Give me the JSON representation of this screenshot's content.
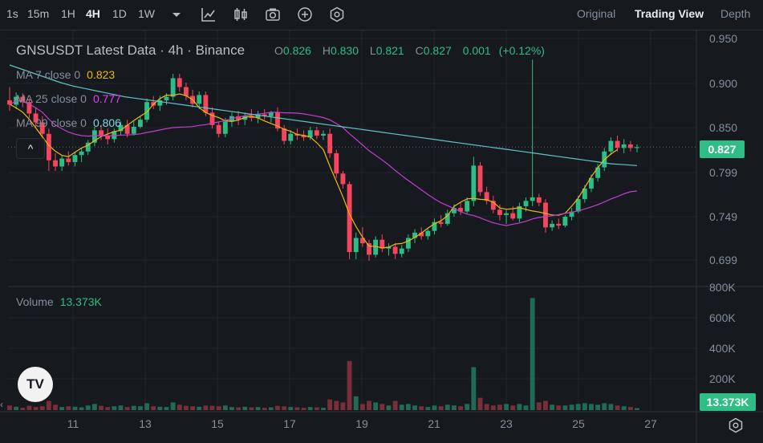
{
  "toolbar": {
    "timeframes": [
      "1s",
      "15m",
      "1H",
      "4H",
      "1D",
      "1W"
    ],
    "active_timeframe": "4H",
    "icons": [
      "dropdown-caret-icon",
      "indicator-icon",
      "candle-style-icon",
      "screenshot-icon",
      "add-icon",
      "settings-hex-icon"
    ],
    "views": [
      "Original",
      "Trading View",
      "Depth"
    ],
    "active_view": "Trading View"
  },
  "legend": {
    "symbol": "GNSUSDT Latest Data · 4h · Binance",
    "ohlc": {
      "o_label": "O",
      "o": "0.826",
      "h_label": "H",
      "h": "0.830",
      "l_label": "L",
      "l": "0.821",
      "c_label": "C",
      "c": "0.827",
      "change": "0.001",
      "change_pct": "(+0.12%)"
    },
    "ma7": {
      "label": "MA 7 close 0",
      "value": "0.823",
      "color": "#f0b90b"
    },
    "ma25": {
      "label": "MA 25 close 0",
      "value": "0.777",
      "color": "#e040fb"
    },
    "ma99": {
      "label": "MA 99 close 0",
      "value": "0.806",
      "color": "#7fd6e8"
    },
    "collapse": "^"
  },
  "volume_legend": {
    "label": "Volume",
    "value": "13.373K"
  },
  "logo_text": "TV",
  "price_axis": [
    "0.950",
    "0.900",
    "0.850",
    "0.799",
    "0.749",
    "0.699"
  ],
  "volume_axis": [
    "800K",
    "600K",
    "400K",
    "200K"
  ],
  "current_price_tag": "0.827",
  "current_volume_tag": "13.373K",
  "date_axis": [
    "11",
    "13",
    "15",
    "17",
    "19",
    "21",
    "23",
    "25",
    "27"
  ],
  "colors": {
    "up": "#2ebd85",
    "down": "#f6465d",
    "up_vol": "#1f6b55",
    "down_vol": "#7a2e3a",
    "ma7": "#f0b90b",
    "ma25": "#c13fd1",
    "ma99": "#5fc4c4"
  },
  "chart_data": {
    "type": "candlestick",
    "interval": "4h",
    "ylim": [
      0.68,
      0.955
    ],
    "volume_ylim": [
      0,
      850000
    ],
    "x_ticks": [
      "11",
      "13",
      "15",
      "17",
      "19",
      "21",
      "23",
      "25",
      "27"
    ],
    "candles": [
      [
        0.88,
        0.895,
        0.868,
        0.875,
        30000
      ],
      [
        0.875,
        0.889,
        0.87,
        0.884,
        22000
      ],
      [
        0.884,
        0.888,
        0.872,
        0.878,
        15000
      ],
      [
        0.878,
        0.882,
        0.86,
        0.865,
        28000
      ],
      [
        0.865,
        0.872,
        0.85,
        0.855,
        20000
      ],
      [
        0.855,
        0.862,
        0.838,
        0.842,
        25000
      ],
      [
        0.842,
        0.848,
        0.8,
        0.812,
        60000
      ],
      [
        0.812,
        0.82,
        0.8,
        0.805,
        35000
      ],
      [
        0.805,
        0.818,
        0.8,
        0.814,
        20000
      ],
      [
        0.814,
        0.822,
        0.806,
        0.81,
        25000
      ],
      [
        0.81,
        0.822,
        0.805,
        0.818,
        22000
      ],
      [
        0.818,
        0.826,
        0.81,
        0.822,
        18000
      ],
      [
        0.822,
        0.835,
        0.818,
        0.832,
        30000
      ],
      [
        0.832,
        0.85,
        0.828,
        0.846,
        40000
      ],
      [
        0.846,
        0.852,
        0.835,
        0.84,
        28000
      ],
      [
        0.84,
        0.848,
        0.83,
        0.836,
        20000
      ],
      [
        0.836,
        0.848,
        0.832,
        0.845,
        25000
      ],
      [
        0.845,
        0.856,
        0.84,
        0.852,
        30000
      ],
      [
        0.852,
        0.858,
        0.838,
        0.842,
        20000
      ],
      [
        0.842,
        0.856,
        0.84,
        0.85,
        28000
      ],
      [
        0.85,
        0.862,
        0.848,
        0.858,
        25000
      ],
      [
        0.858,
        0.882,
        0.855,
        0.878,
        45000
      ],
      [
        0.878,
        0.885,
        0.87,
        0.874,
        25000
      ],
      [
        0.874,
        0.885,
        0.868,
        0.88,
        22000
      ],
      [
        0.88,
        0.888,
        0.875,
        0.884,
        20000
      ],
      [
        0.884,
        0.91,
        0.88,
        0.905,
        50000
      ],
      [
        0.905,
        0.91,
        0.89,
        0.895,
        35000
      ],
      [
        0.895,
        0.9,
        0.88,
        0.885,
        28000
      ],
      [
        0.885,
        0.892,
        0.872,
        0.876,
        25000
      ],
      [
        0.876,
        0.89,
        0.87,
        0.886,
        22000
      ],
      [
        0.886,
        0.89,
        0.862,
        0.866,
        30000
      ],
      [
        0.866,
        0.872,
        0.848,
        0.852,
        28000
      ],
      [
        0.852,
        0.856,
        0.838,
        0.842,
        25000
      ],
      [
        0.842,
        0.86,
        0.838,
        0.856,
        30000
      ],
      [
        0.856,
        0.866,
        0.85,
        0.862,
        20000
      ],
      [
        0.862,
        0.868,
        0.852,
        0.858,
        18000
      ],
      [
        0.858,
        0.866,
        0.852,
        0.862,
        22000
      ],
      [
        0.862,
        0.87,
        0.856,
        0.86,
        18000
      ],
      [
        0.86,
        0.868,
        0.854,
        0.864,
        20000
      ],
      [
        0.864,
        0.87,
        0.858,
        0.862,
        15000
      ],
      [
        0.862,
        0.868,
        0.855,
        0.866,
        18000
      ],
      [
        0.866,
        0.872,
        0.845,
        0.848,
        28000
      ],
      [
        0.848,
        0.852,
        0.83,
        0.834,
        25000
      ],
      [
        0.834,
        0.846,
        0.83,
        0.842,
        20000
      ],
      [
        0.842,
        0.848,
        0.835,
        0.84,
        18000
      ],
      [
        0.84,
        0.846,
        0.834,
        0.838,
        15000
      ],
      [
        0.838,
        0.85,
        0.835,
        0.846,
        20000
      ],
      [
        0.846,
        0.85,
        0.836,
        0.84,
        18000
      ],
      [
        0.84,
        0.846,
        0.835,
        0.842,
        15000
      ],
      [
        0.842,
        0.848,
        0.815,
        0.82,
        70000
      ],
      [
        0.82,
        0.824,
        0.792,
        0.797,
        60000
      ],
      [
        0.797,
        0.8,
        0.78,
        0.785,
        50000
      ],
      [
        0.785,
        0.788,
        0.7,
        0.708,
        320000
      ],
      [
        0.708,
        0.73,
        0.7,
        0.724,
        90000
      ],
      [
        0.724,
        0.736,
        0.714,
        0.718,
        40000
      ],
      [
        0.718,
        0.722,
        0.698,
        0.705,
        60000
      ],
      [
        0.705,
        0.726,
        0.702,
        0.722,
        50000
      ],
      [
        0.722,
        0.728,
        0.708,
        0.712,
        40000
      ],
      [
        0.712,
        0.718,
        0.704,
        0.714,
        30000
      ],
      [
        0.714,
        0.718,
        0.7,
        0.706,
        60000
      ],
      [
        0.706,
        0.716,
        0.702,
        0.712,
        35000
      ],
      [
        0.712,
        0.728,
        0.708,
        0.724,
        40000
      ],
      [
        0.724,
        0.734,
        0.718,
        0.73,
        30000
      ],
      [
        0.73,
        0.736,
        0.722,
        0.726,
        25000
      ],
      [
        0.726,
        0.734,
        0.722,
        0.732,
        20000
      ],
      [
        0.732,
        0.746,
        0.728,
        0.742,
        30000
      ],
      [
        0.742,
        0.75,
        0.736,
        0.74,
        25000
      ],
      [
        0.74,
        0.756,
        0.738,
        0.752,
        35000
      ],
      [
        0.752,
        0.762,
        0.748,
        0.758,
        30000
      ],
      [
        0.758,
        0.764,
        0.75,
        0.754,
        25000
      ],
      [
        0.754,
        0.77,
        0.752,
        0.766,
        40000
      ],
      [
        0.766,
        0.816,
        0.76,
        0.806,
        280000
      ],
      [
        0.806,
        0.81,
        0.772,
        0.776,
        80000
      ],
      [
        0.776,
        0.782,
        0.762,
        0.766,
        40000
      ],
      [
        0.766,
        0.772,
        0.752,
        0.756,
        30000
      ],
      [
        0.756,
        0.762,
        0.744,
        0.75,
        35000
      ],
      [
        0.75,
        0.756,
        0.74,
        0.752,
        40000
      ],
      [
        0.752,
        0.76,
        0.744,
        0.746,
        30000
      ],
      [
        0.746,
        0.764,
        0.742,
        0.76,
        40000
      ],
      [
        0.76,
        0.77,
        0.754,
        0.766,
        30000
      ],
      [
        0.766,
        0.926,
        0.76,
        0.77,
        730000
      ],
      [
        0.77,
        0.774,
        0.76,
        0.764,
        50000
      ],
      [
        0.764,
        0.768,
        0.73,
        0.736,
        60000
      ],
      [
        0.736,
        0.744,
        0.732,
        0.74,
        35000
      ],
      [
        0.74,
        0.746,
        0.734,
        0.738,
        30000
      ],
      [
        0.738,
        0.75,
        0.736,
        0.748,
        30000
      ],
      [
        0.748,
        0.758,
        0.744,
        0.754,
        35000
      ],
      [
        0.754,
        0.772,
        0.752,
        0.768,
        40000
      ],
      [
        0.768,
        0.784,
        0.764,
        0.78,
        45000
      ],
      [
        0.78,
        0.796,
        0.776,
        0.792,
        40000
      ],
      [
        0.792,
        0.808,
        0.788,
        0.804,
        35000
      ],
      [
        0.804,
        0.826,
        0.8,
        0.822,
        45000
      ],
      [
        0.822,
        0.838,
        0.818,
        0.834,
        40000
      ],
      [
        0.834,
        0.84,
        0.822,
        0.826,
        30000
      ],
      [
        0.826,
        0.836,
        0.82,
        0.83,
        25000
      ],
      [
        0.83,
        0.834,
        0.822,
        0.826,
        20000
      ],
      [
        0.826,
        0.83,
        0.821,
        0.827,
        13373
      ]
    ],
    "ma99_series": [
      0.92,
      0.915,
      0.91,
      0.905,
      0.9,
      0.896,
      0.893,
      0.89,
      0.887,
      0.884,
      0.882,
      0.88,
      0.878,
      0.876,
      0.874,
      0.872,
      0.87,
      0.868,
      0.866,
      0.864,
      0.862,
      0.86,
      0.858,
      0.856,
      0.854,
      0.852,
      0.85,
      0.848,
      0.846,
      0.844,
      0.842,
      0.84,
      0.838,
      0.836,
      0.834,
      0.832,
      0.83,
      0.828,
      0.826,
      0.824,
      0.822,
      0.82,
      0.818,
      0.816,
      0.814,
      0.812,
      0.81,
      0.808,
      0.807,
      0.806
    ]
  }
}
